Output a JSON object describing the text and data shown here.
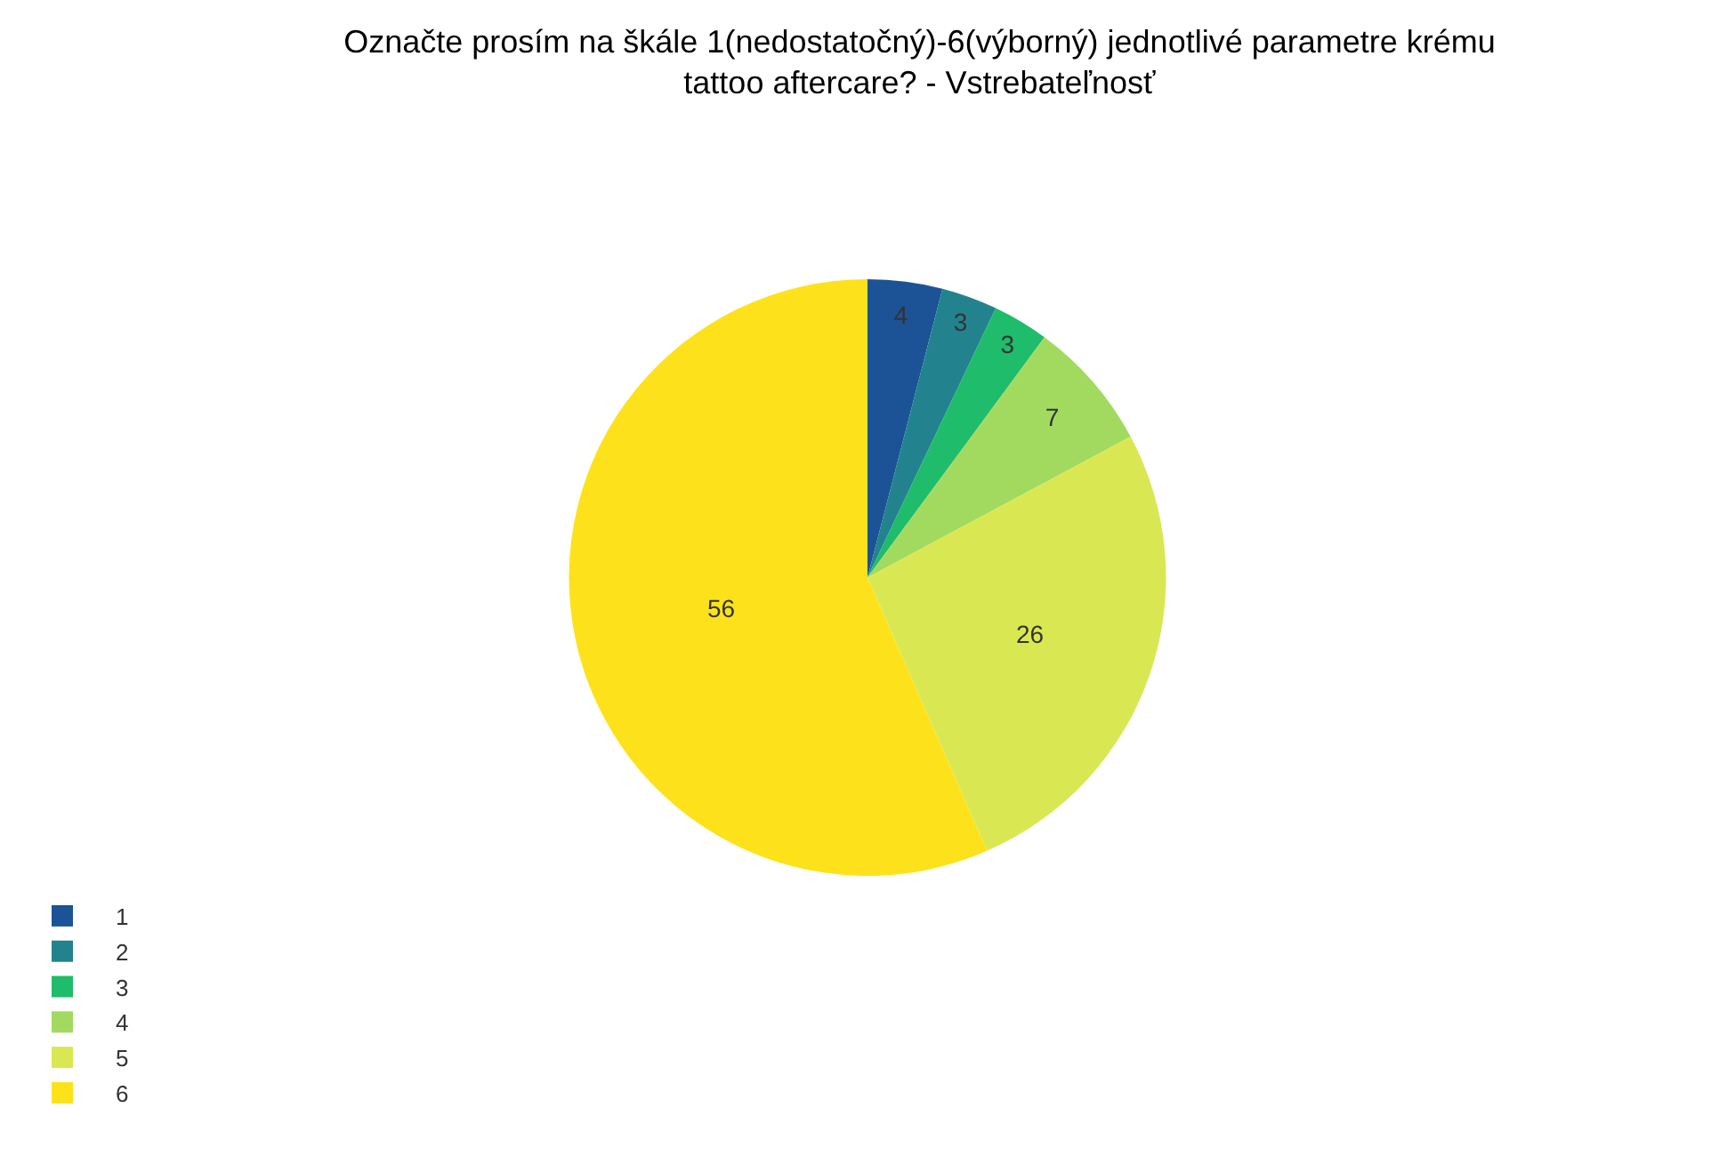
{
  "chart_data": {
    "type": "pie",
    "title": "Označte prosím na škále 1(nedostatočný)-6(výborný) jednotlivé parametre krému tattoo aftercare? - Vstrebateľnosť",
    "categories": [
      "1",
      "2",
      "3",
      "4",
      "5",
      "6"
    ],
    "values": [
      4,
      3,
      3,
      7,
      26,
      56
    ],
    "colors": [
      "#1b5396",
      "#22838f",
      "#1fbc6b",
      "#a2da60",
      "#d9e852",
      "#fde21b"
    ],
    "data_labels": true,
    "legend": "bottom left"
  }
}
